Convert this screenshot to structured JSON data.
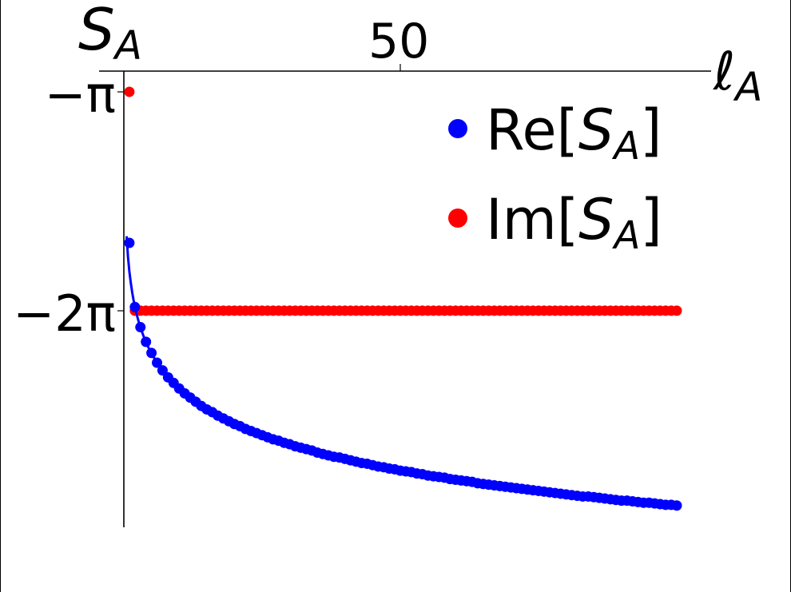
{
  "chart_data": {
    "type": "scatter",
    "title": "",
    "xlabel": "ℓ_A",
    "ylabel": "S_A",
    "x_axis": {
      "position": "top",
      "ticks": [
        50
      ],
      "tick_labels": [
        "50"
      ],
      "range": [
        0,
        100
      ]
    },
    "y_axis": {
      "ticks": [
        -3.14159,
        -6.28319
      ],
      "tick_labels": [
        "−π",
        "−2π"
      ],
      "range": [
        -9.5,
        -2.84
      ]
    },
    "grid": false,
    "legend": {
      "position": "upper right",
      "entries": [
        "Re[S_A]",
        "Im[S_A]"
      ]
    },
    "x": [
      1,
      2,
      3,
      4,
      5,
      6,
      7,
      8,
      9,
      10,
      11,
      12,
      13,
      14,
      15,
      16,
      17,
      18,
      19,
      20,
      21,
      22,
      23,
      24,
      25,
      26,
      27,
      28,
      29,
      30,
      31,
      32,
      33,
      34,
      35,
      36,
      37,
      38,
      39,
      40,
      41,
      42,
      43,
      44,
      45,
      46,
      47,
      48,
      49,
      50,
      51,
      52,
      53,
      54,
      55,
      56,
      57,
      58,
      59,
      60,
      61,
      62,
      63,
      64,
      65,
      66,
      67,
      68,
      69,
      70,
      71,
      72,
      73,
      74,
      75,
      76,
      77,
      78,
      79,
      80,
      81,
      82,
      83,
      84,
      85,
      86,
      87,
      88,
      89,
      90,
      91,
      92,
      93,
      94,
      95,
      96,
      97,
      98,
      99,
      100
    ],
    "series": [
      {
        "name": "Re[S_A]",
        "color": "#0000ff",
        "style": "points + fit line",
        "values": [
          -5.31,
          -6.23,
          -6.52,
          -6.73,
          -6.89,
          -7.03,
          -7.14,
          -7.24,
          -7.32,
          -7.4,
          -7.47,
          -7.53,
          -7.59,
          -7.65,
          -7.7,
          -7.74,
          -7.79,
          -7.83,
          -7.87,
          -7.91,
          -7.94,
          -7.98,
          -8.01,
          -8.04,
          -8.07,
          -8.1,
          -8.13,
          -8.15,
          -8.18,
          -8.2,
          -8.23,
          -8.25,
          -8.27,
          -8.29,
          -8.32,
          -8.34,
          -8.36,
          -8.38,
          -8.39,
          -8.41,
          -8.43,
          -8.45,
          -8.47,
          -8.48,
          -8.5,
          -8.52,
          -8.53,
          -8.55,
          -8.56,
          -8.58,
          -8.59,
          -8.6,
          -8.62,
          -8.63,
          -8.65,
          -8.66,
          -8.67,
          -8.68,
          -8.7,
          -8.71,
          -8.72,
          -8.73,
          -8.74,
          -8.76,
          -8.77,
          -8.78,
          -8.79,
          -8.8,
          -8.81,
          -8.82,
          -8.83,
          -8.84,
          -8.85,
          -8.86,
          -8.87,
          -8.88,
          -8.89,
          -8.9,
          -8.91,
          -8.92,
          -8.93,
          -8.94,
          -8.95,
          -8.95,
          -8.96,
          -8.97,
          -8.98,
          -8.99,
          -9.0,
          -9.01,
          -9.01,
          -9.02,
          -9.03,
          -9.04,
          -9.04,
          -9.05,
          -9.06,
          -9.07,
          -9.07,
          -9.08
        ],
        "fit_line": {
          "x_start": 0.5,
          "y_start": -5.55,
          "x_end": 100,
          "y_end": -9.08
        }
      },
      {
        "name": "Im[S_A]",
        "color": "#ff0000",
        "style": "points",
        "values": [
          -3.14159,
          -6.28319,
          -6.28319,
          -6.28319,
          -6.28319,
          -6.28319,
          -6.28319,
          -6.28319,
          -6.28319,
          -6.28319,
          -6.28319,
          -6.28319,
          -6.28319,
          -6.28319,
          -6.28319,
          -6.28319,
          -6.28319,
          -6.28319,
          -6.28319,
          -6.28319,
          -6.28319,
          -6.28319,
          -6.28319,
          -6.28319,
          -6.28319,
          -6.28319,
          -6.28319,
          -6.28319,
          -6.28319,
          -6.28319,
          -6.28319,
          -6.28319,
          -6.28319,
          -6.28319,
          -6.28319,
          -6.28319,
          -6.28319,
          -6.28319,
          -6.28319,
          -6.28319,
          -6.28319,
          -6.28319,
          -6.28319,
          -6.28319,
          -6.28319,
          -6.28319,
          -6.28319,
          -6.28319,
          -6.28319,
          -6.28319,
          -6.28319,
          -6.28319,
          -6.28319,
          -6.28319,
          -6.28319,
          -6.28319,
          -6.28319,
          -6.28319,
          -6.28319,
          -6.28319,
          -6.28319,
          -6.28319,
          -6.28319,
          -6.28319,
          -6.28319,
          -6.28319,
          -6.28319,
          -6.28319,
          -6.28319,
          -6.28319,
          -6.28319,
          -6.28319,
          -6.28319,
          -6.28319,
          -6.28319,
          -6.28319,
          -6.28319,
          -6.28319,
          -6.28319,
          -6.28319,
          -6.28319,
          -6.28319,
          -6.28319,
          -6.28319,
          -6.28319,
          -6.28319,
          -6.28319,
          -6.28319,
          -6.28319,
          -6.28319,
          -6.28319,
          -6.28319,
          -6.28319,
          -6.28319,
          -6.28319,
          -6.28319,
          -6.28319,
          -6.28319,
          -6.28319,
          -6.28319
        ]
      }
    ]
  },
  "labels": {
    "ylabel_main": "S",
    "ylabel_sub": "A",
    "xlabel_main": "ℓ",
    "xlabel_sub": "A",
    "xtick_50": "50",
    "ytick_pi": "−π",
    "ytick_2pi": "−2π",
    "legend_re_prefix": "Re[",
    "legend_im_prefix": "Im[",
    "legend_S": "S",
    "legend_sub": "A",
    "legend_suffix": "]"
  }
}
